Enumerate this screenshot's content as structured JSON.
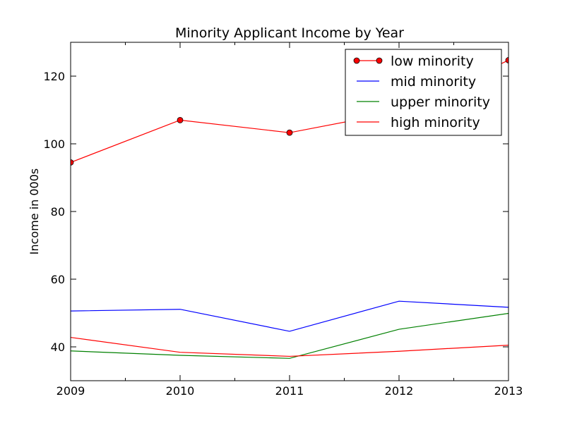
{
  "chart_data": {
    "type": "line",
    "title": "Minority Applicant Income by Year",
    "xlabel": "",
    "ylabel": "Income in 000s",
    "x": [
      2009,
      2010,
      2011,
      2012,
      2013
    ],
    "xlim": [
      2009,
      2013
    ],
    "ylim": [
      30,
      130
    ],
    "xticks": [
      "2009",
      "2010",
      "2011",
      "2012",
      "2013"
    ],
    "yticks": [
      "40",
      "60",
      "80",
      "100",
      "120"
    ],
    "grid": false,
    "legend_position": "top-right",
    "series": [
      {
        "name": "low minority",
        "values": [
          94.5,
          107,
          103.3,
          109.5,
          124.7
        ],
        "color": "#ff0000",
        "marker": "circle"
      },
      {
        "name": "mid minority",
        "values": [
          50.6,
          51.1,
          44.6,
          53.5,
          51.7
        ],
        "color": "#0000ff",
        "marker": "none"
      },
      {
        "name": "upper minority",
        "values": [
          38.8,
          37.5,
          36.6,
          45.2,
          49.9
        ],
        "color": "#008000",
        "marker": "none"
      },
      {
        "name": "high minority",
        "values": [
          42.8,
          38.4,
          37.2,
          38.7,
          40.5
        ],
        "color": "#ff0000",
        "marker": "none"
      }
    ]
  }
}
